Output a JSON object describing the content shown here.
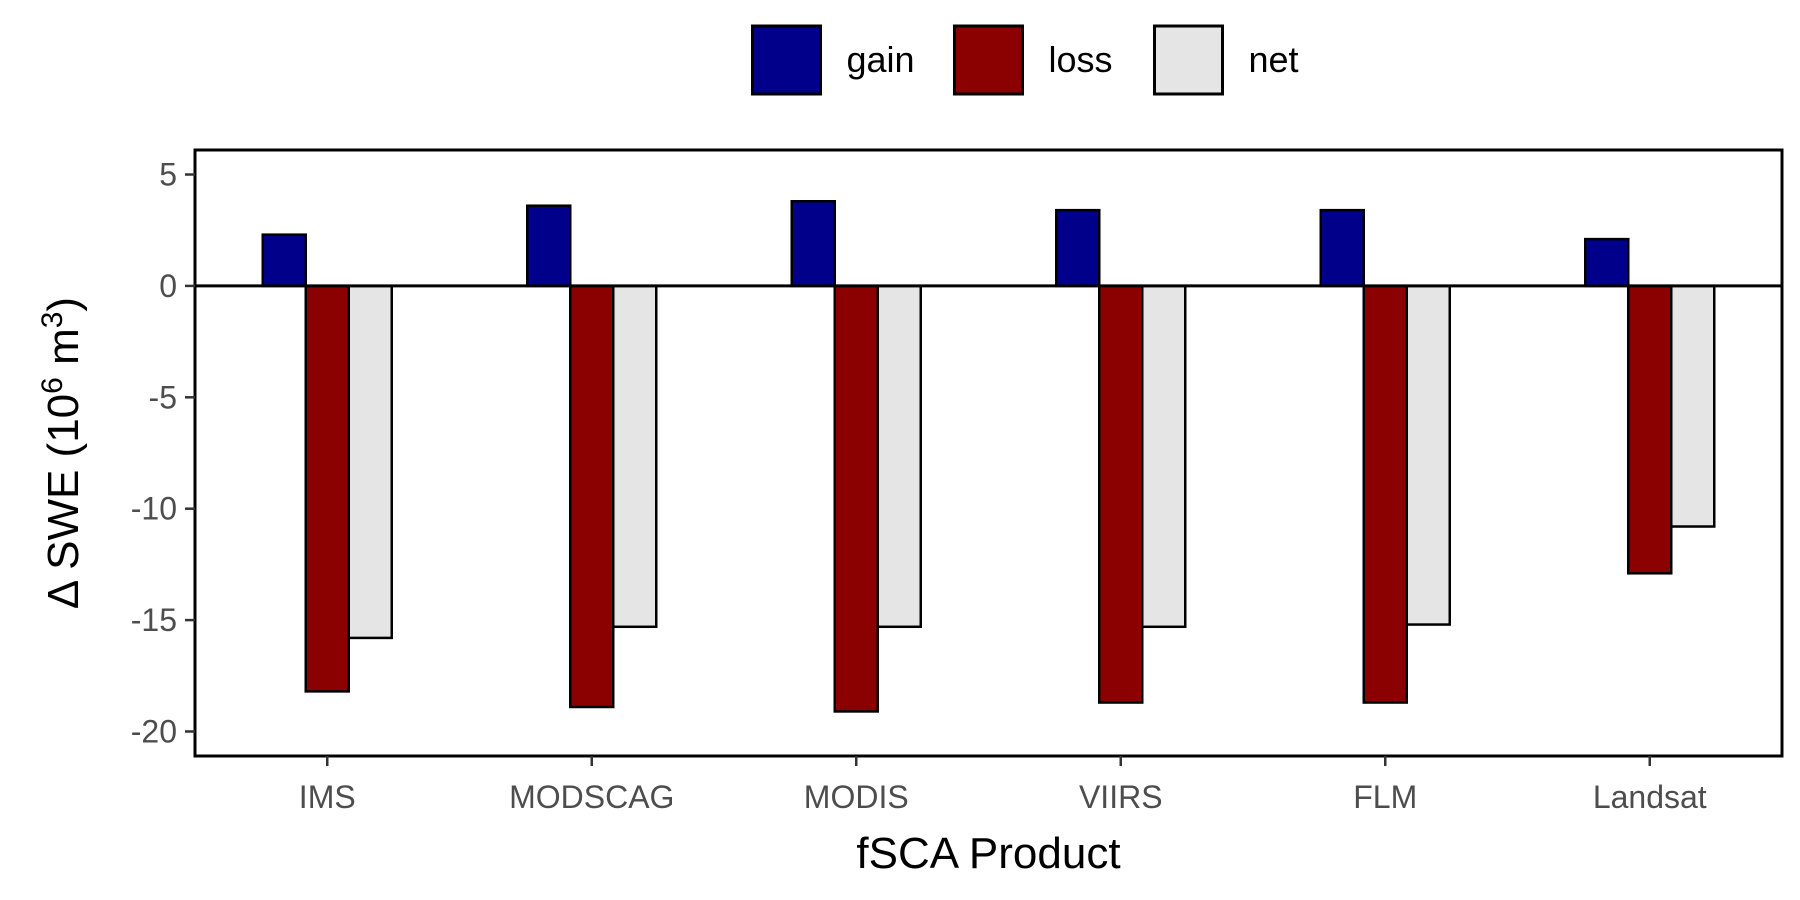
{
  "chart_data": {
    "type": "bar",
    "categories": [
      "IMS",
      "MODSCAG",
      "MODIS",
      "VIIRS",
      "FLM",
      "Landsat"
    ],
    "series": [
      {
        "name": "gain",
        "color": "#00008b",
        "values": [
          2.3,
          3.6,
          3.8,
          3.4,
          3.4,
          2.1
        ]
      },
      {
        "name": "loss",
        "color": "#8b0000",
        "values": [
          -18.2,
          -18.9,
          -19.1,
          -18.7,
          -18.7,
          -12.9
        ]
      },
      {
        "name": "net",
        "color": "#e5e5e5",
        "values": [
          -15.8,
          -15.3,
          -15.3,
          -15.3,
          -15.2,
          -10.8
        ]
      }
    ],
    "xlabel": "fSCA Product",
    "ylabel": {
      "prefix": "Δ SWE (10",
      "exp1": "6",
      "mid": " m",
      "exp2": "3",
      "suffix": ")"
    },
    "ylim": [
      -21.1,
      6.1
    ],
    "yticks": [
      5,
      0,
      -5,
      -10,
      -15,
      -20
    ],
    "ytick_labels": [
      "5",
      "0",
      "-5",
      "-10",
      "-15",
      "-20"
    ],
    "legend_position": "top",
    "grid": false,
    "zero_line": true
  }
}
